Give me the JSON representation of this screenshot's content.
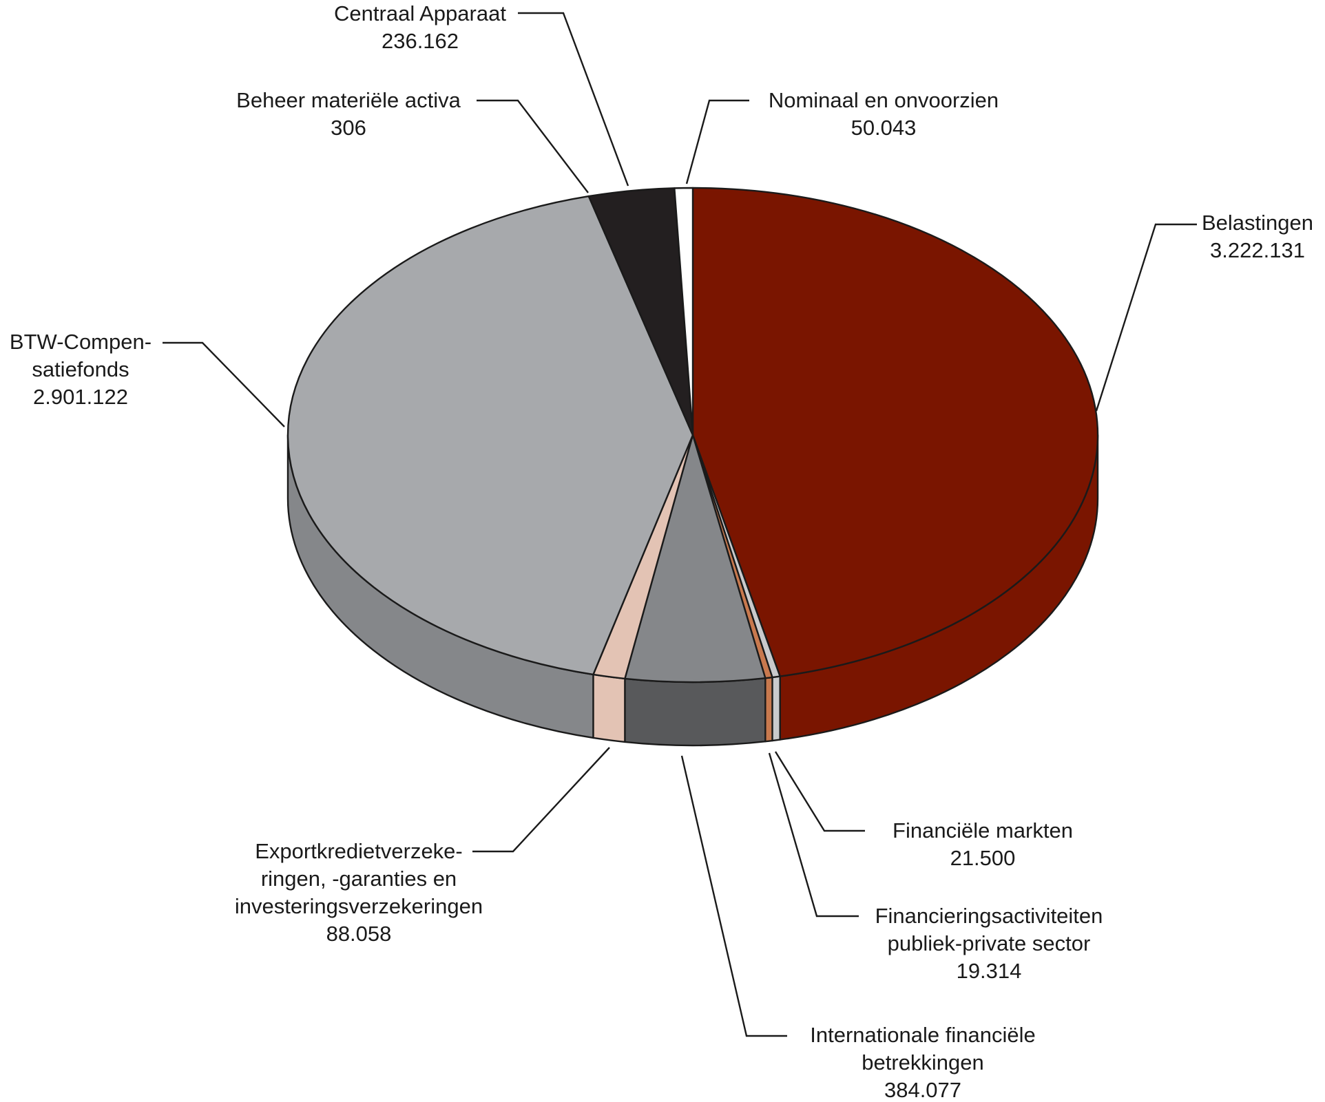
{
  "chart_data": {
    "type": "pie",
    "title": "",
    "slices": [
      {
        "name": "Belastingen",
        "value": 3222131,
        "value_label": "3.222.131",
        "color": "#7a1500",
        "side_color": "#7a1500"
      },
      {
        "name": "Financiële markten",
        "value": 21500,
        "value_label": "21.500",
        "color": "#c9cacc",
        "side_color": "#c9cacc"
      },
      {
        "name": "Financieringsactiviteiten publiek-private sector",
        "value": 19314,
        "value_label": "19.314",
        "color": "#c8794e",
        "side_color": "#c8794e"
      },
      {
        "name": "Internationale financiële betrekkingen",
        "value": 384077,
        "value_label": "384.077",
        "color": "#85878a",
        "side_color": "#58595b"
      },
      {
        "name": "Exportkredietverzekeringen, -garanties en investeringsverzekeringen",
        "value": 88058,
        "value_label": "88.058",
        "color": "#e3c3b4",
        "side_color": "#e3c3b4"
      },
      {
        "name": "BTW-Compensatiefonds",
        "value": 2901122,
        "value_label": "2.901.122",
        "color": "#a7a9ac",
        "side_color": "#85878a"
      },
      {
        "name": "Beheer materiële activa",
        "value": 306,
        "value_label": "306",
        "color": "#a7a9ac",
        "side_color": "#85878a"
      },
      {
        "name": "Centraal Apparaat",
        "value": 236162,
        "value_label": "236.162",
        "color": "#231f20",
        "side_color": "#231f20"
      },
      {
        "name": "Nominaal en onvoorzien",
        "value": 50043,
        "value_label": "50.043",
        "color": "#ffffff",
        "side_color": "#ffffff"
      }
    ],
    "labels": [
      {
        "lines": [
          "Centraal Apparaat",
          "236.162"
        ]
      },
      {
        "lines": [
          "Beheer materiële activa",
          "306"
        ]
      },
      {
        "lines": [
          "Nominaal en onvoorzien",
          "50.043"
        ]
      },
      {
        "lines": [
          "Belastingen",
          "3.222.131"
        ]
      },
      {
        "lines": [
          "BTW-Compen-",
          "satiefonds",
          "2.901.122"
        ]
      },
      {
        "lines": [
          "Exportkredietverzeke-",
          "ringen, -garanties en",
          "investeringsverzekeringen",
          "88.058"
        ]
      },
      {
        "lines": [
          "Financiële markten",
          "21.500"
        ]
      },
      {
        "lines": [
          "Financieringsactiviteiten",
          "publiek-private sector",
          "19.314"
        ]
      },
      {
        "lines": [
          "Internationale financiële",
          "betrekkingen",
          "384.077"
        ]
      }
    ]
  }
}
